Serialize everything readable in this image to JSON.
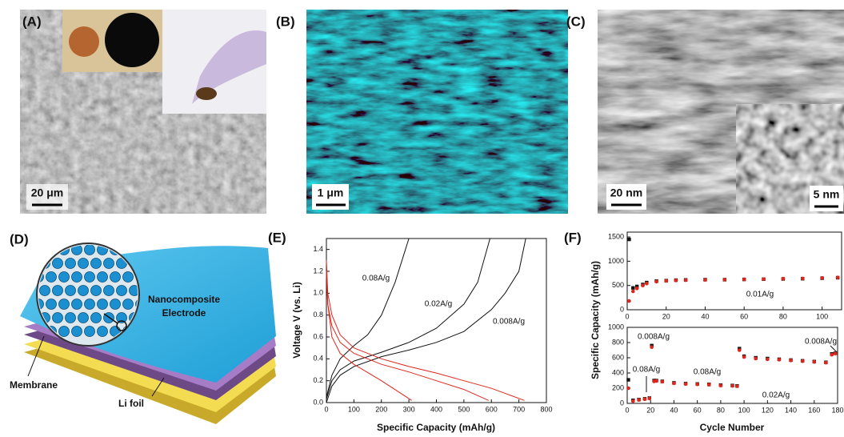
{
  "panels": {
    "a": {
      "label": "(A)",
      "scale_bar": "20 μm"
    },
    "b": {
      "label": "(B)",
      "scale_bar": "1 μm"
    },
    "c": {
      "label": "(C)",
      "scale_bar": "20 nm",
      "inset_scale_bar": "5 nm"
    },
    "d": {
      "label": "(D)",
      "electrode": [
        "Nanocomposite",
        "Electrode"
      ],
      "membrane": "Membrane",
      "foil": "Li foil"
    },
    "e": {
      "label": "(E)"
    },
    "f": {
      "label": "(F)"
    }
  },
  "chart_data": [
    {
      "type": "line",
      "xlabel": "Specific Capacity (mAh/g)",
      "ylabel": "Voltage V (vs. Li)",
      "xlim": [
        0,
        800
      ],
      "xticks": [
        0,
        100,
        200,
        300,
        400,
        500,
        600,
        700,
        800
      ],
      "ylim": [
        0,
        1.5
      ],
      "yticks": [
        {
          "value": 0,
          "label": "0.0"
        },
        0.2,
        0.4,
        0.6,
        0.8,
        {
          "value": 1,
          "label": "1.0"
        },
        1.2,
        1.4
      ],
      "annotations": [
        "0.08A/g",
        "0.02A/g",
        "0.008A/g"
      ],
      "series": [
        {
          "color": "#111111",
          "x": [
            0,
            20,
            50,
            100,
            150,
            200,
            250,
            300
          ],
          "values": [
            0.05,
            0.25,
            0.4,
            0.52,
            0.62,
            0.8,
            1.1,
            1.5
          ]
        },
        {
          "color": "#111111",
          "x": [
            0,
            20,
            50,
            100,
            200,
            300,
            400,
            500,
            550,
            595
          ],
          "values": [
            0.03,
            0.2,
            0.3,
            0.38,
            0.46,
            0.55,
            0.68,
            0.9,
            1.1,
            1.5
          ]
        },
        {
          "color": "#111111",
          "x": [
            0,
            20,
            50,
            100,
            200,
            300,
            400,
            500,
            600,
            650,
            700,
            725
          ],
          "values": [
            0,
            0.15,
            0.25,
            0.33,
            0.42,
            0.48,
            0.55,
            0.65,
            0.85,
            1.0,
            1.2,
            1.5
          ]
        },
        {
          "color": "#e0261c",
          "x": [
            0,
            5,
            20,
            50,
            100,
            200,
            310
          ],
          "values": [
            1.2,
            0.9,
            0.6,
            0.45,
            0.35,
            0.2,
            0.02
          ]
        },
        {
          "color": "#e0261c",
          "x": [
            0,
            5,
            20,
            50,
            100,
            200,
            300,
            400,
            500,
            590
          ],
          "values": [
            1.2,
            0.9,
            0.7,
            0.55,
            0.45,
            0.35,
            0.28,
            0.2,
            0.12,
            0.02
          ]
        },
        {
          "color": "#e0261c",
          "x": [
            0,
            5,
            20,
            50,
            100,
            200,
            300,
            400,
            500,
            600,
            720
          ],
          "values": [
            1.3,
            1.0,
            0.8,
            0.62,
            0.5,
            0.4,
            0.33,
            0.27,
            0.2,
            0.13,
            0.02
          ]
        }
      ]
    },
    {
      "type": "scatter",
      "ylabel": "Specific Capacity (mAh/g)",
      "xlim": [
        0,
        110
      ],
      "xticks": [
        0,
        20,
        40,
        60,
        80,
        100
      ],
      "ylim": [
        0,
        1600
      ],
      "yticks": [
        0,
        500,
        1000,
        1500
      ],
      "annotations": [
        "0.01A/g"
      ],
      "x": [
        1,
        3,
        5,
        8,
        10,
        15,
        20,
        25,
        30,
        40,
        50,
        60,
        70,
        80,
        90,
        100,
        108
      ],
      "series": [
        {
          "color": "#111111",
          "values": [
            1450,
            450,
            480,
            520,
            560,
            590,
            600,
            610,
            615,
            620,
            620,
            625,
            630,
            635,
            640,
            650,
            660
          ]
        },
        {
          "color": "#e0261c",
          "values": [
            180,
            380,
            440,
            500,
            540,
            580,
            595,
            605,
            610,
            615,
            620,
            625,
            630,
            640,
            645,
            655,
            665
          ]
        }
      ]
    },
    {
      "type": "scatter",
      "xlabel": "Cycle Number",
      "xlim": [
        0,
        180
      ],
      "xticks": [
        0,
        20,
        40,
        60,
        80,
        100,
        120,
        140,
        160,
        180
      ],
      "ylim": [
        0,
        1000
      ],
      "yticks": [
        0,
        200,
        400,
        600,
        800,
        1000
      ],
      "annotations": [
        "0.008A/g",
        "0.08A/g",
        "0.08A/g",
        "0.02A/g",
        "0.008A/g"
      ],
      "x": [
        1,
        5,
        10,
        15,
        19,
        21,
        23,
        25,
        30,
        40,
        50,
        60,
        70,
        80,
        90,
        94,
        96,
        100,
        110,
        120,
        130,
        140,
        150,
        160,
        170,
        175,
        178
      ],
      "series": [
        {
          "color": "#111111",
          "values": [
            310,
            40,
            50,
            60,
            70,
            760,
            300,
            300,
            290,
            270,
            260,
            255,
            250,
            240,
            235,
            230,
            720,
            620,
            600,
            590,
            580,
            570,
            560,
            550,
            540,
            650,
            660
          ]
        },
        {
          "color": "#e0261c",
          "values": [
            200,
            30,
            45,
            55,
            65,
            740,
            290,
            295,
            285,
            265,
            255,
            250,
            245,
            235,
            230,
            225,
            700,
            610,
            590,
            580,
            575,
            565,
            555,
            545,
            535,
            640,
            655
          ]
        }
      ]
    }
  ]
}
